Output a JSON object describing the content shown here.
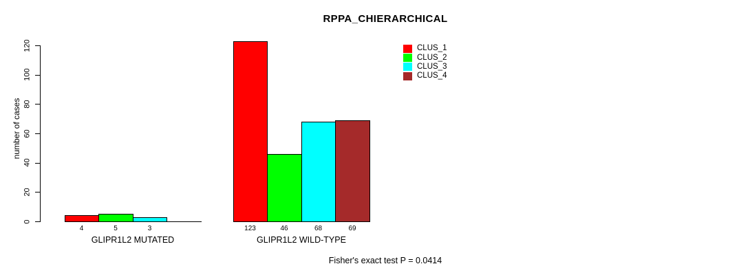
{
  "figure": {
    "title": "RPPA_CHIERARCHICAL",
    "footnote": "Fisher's exact test P = 0.0414"
  },
  "chart_data": {
    "type": "bar",
    "title": "RPPA_CHIERARCHICAL",
    "xlabel": "",
    "ylabel": "number of cases",
    "ylim": [
      0,
      123
    ],
    "yticks": [
      0,
      20,
      40,
      60,
      80,
      100,
      120
    ],
    "grid": false,
    "legend_position": "top-right",
    "categories": [
      "GLIPR1L2 MUTATED",
      "GLIPR1L2 WILD-TYPE"
    ],
    "series": [
      {
        "name": "CLUS_1",
        "color": "#ff0000",
        "values": [
          4,
          123
        ]
      },
      {
        "name": "CLUS_2",
        "color": "#00ff00",
        "values": [
          5,
          46
        ]
      },
      {
        "name": "CLUS_3",
        "color": "#00ffff",
        "values": [
          3,
          68
        ]
      },
      {
        "name": "CLUS_4",
        "color": "#a52a2a",
        "values": [
          0,
          69
        ]
      }
    ],
    "bar_value_labels_shown": [
      [
        "4",
        "5",
        "3",
        null
      ],
      [
        "123",
        "46",
        "68",
        "69"
      ]
    ],
    "annotation": "Fisher's exact test P = 0.0414"
  }
}
